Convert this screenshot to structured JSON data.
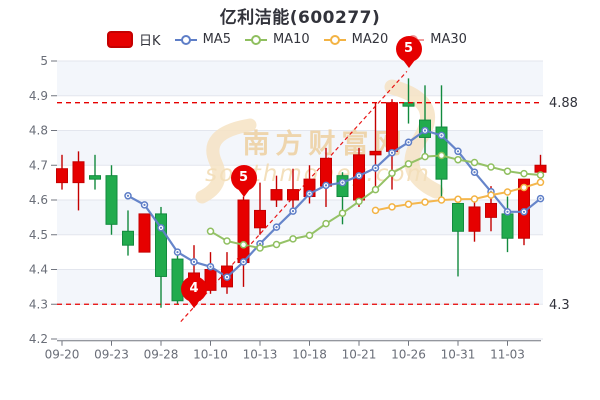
{
  "title": "亿利洁能(600277)",
  "legend": [
    {
      "id": "rik",
      "label": "日K",
      "type": "swatch",
      "color": "#e60000"
    },
    {
      "id": "ma5",
      "label": "MA5",
      "type": "line",
      "color": "#5e7ec7"
    },
    {
      "id": "ma10",
      "label": "MA10",
      "type": "line",
      "color": "#8fbf5f"
    },
    {
      "id": "ma20",
      "label": "MA20",
      "type": "line",
      "color": "#f3b344"
    },
    {
      "id": "ma30",
      "label": "MA30",
      "type": "line",
      "color": "#ef9a9a"
    }
  ],
  "watermark": {
    "cn": "南方财富网",
    "en": "southmoney.com"
  },
  "colors": {
    "up": "#e60000",
    "up_dark": "#c40000",
    "down": "#21ab4d",
    "down_dark": "#128a3e",
    "ma5": "#5e7ec7",
    "ma10": "#8fbf5f",
    "ma20": "#f3b344",
    "ma30": "#ef9a9a",
    "ref": "#e60000",
    "grid": "#e3e6ee",
    "band": "#f3f6fb",
    "axis": "#71757f",
    "label": "#6a6e78",
    "annotation": "#32333c",
    "balloon": "#e60000",
    "title": "#32333b",
    "watermark_text": "#eed0a0",
    "watermark_en": "#f2dab0",
    "watermark_swirl": "#f6e3c4"
  },
  "chart_data": {
    "type": "candlestick",
    "title": "亿利洁能(600277)",
    "ylim": [
      4.2,
      5.0
    ],
    "y_ticks": [
      5,
      4.9,
      4.8,
      4.7,
      4.6,
      4.5,
      4.4,
      4.3,
      4.2
    ],
    "grid": "horizontal-only",
    "band_pairs": [
      [
        5.0,
        4.9
      ],
      [
        4.8,
        4.7
      ],
      [
        4.6,
        4.5
      ],
      [
        4.4,
        4.3
      ]
    ],
    "x_labels": [
      "09-20",
      "09-23",
      "09-28",
      "10-10",
      "10-13",
      "10-18",
      "10-21",
      "10-26",
      "10-31",
      "11-03"
    ],
    "x_label_candles": [
      1,
      4,
      7,
      10,
      13,
      16,
      19,
      22,
      25,
      28
    ],
    "candles": [
      [
        4.65,
        4.73,
        4.63,
        4.69
      ],
      [
        4.65,
        4.74,
        4.57,
        4.71
      ],
      [
        4.67,
        4.73,
        4.63,
        4.66
      ],
      [
        4.67,
        4.7,
        4.5,
        4.53
      ],
      [
        4.51,
        4.57,
        4.44,
        4.47
      ],
      [
        4.45,
        4.56,
        4.45,
        4.56
      ],
      [
        4.56,
        4.58,
        4.29,
        4.38
      ],
      [
        4.43,
        4.44,
        4.3,
        4.31
      ],
      [
        4.33,
        4.47,
        4.29,
        4.39
      ],
      [
        4.34,
        4.45,
        4.33,
        4.4
      ],
      [
        4.35,
        4.45,
        4.33,
        4.41
      ],
      [
        4.42,
        4.61,
        4.35,
        4.6
      ],
      [
        4.52,
        4.65,
        4.5,
        4.57
      ],
      [
        4.6,
        4.67,
        4.58,
        4.63
      ],
      [
        4.6,
        4.69,
        4.57,
        4.63
      ],
      [
        4.61,
        4.7,
        4.59,
        4.66
      ],
      [
        4.64,
        4.75,
        4.58,
        4.72
      ],
      [
        4.67,
        4.68,
        4.53,
        4.61
      ],
      [
        4.6,
        4.75,
        4.58,
        4.73
      ],
      [
        4.73,
        4.88,
        4.63,
        4.74
      ],
      [
        4.74,
        4.89,
        4.63,
        4.88
      ],
      [
        4.88,
        4.95,
        4.82,
        4.87
      ],
      [
        4.83,
        4.93,
        4.72,
        4.78
      ],
      [
        4.81,
        4.93,
        4.61,
        4.66
      ],
      [
        4.59,
        4.6,
        4.38,
        4.51
      ],
      [
        4.51,
        4.6,
        4.48,
        4.58
      ],
      [
        4.55,
        4.64,
        4.51,
        4.59
      ],
      [
        4.56,
        4.61,
        4.45,
        4.49
      ],
      [
        4.49,
        4.66,
        4.47,
        4.66
      ],
      [
        4.68,
        4.73,
        4.65,
        4.7
      ]
    ],
    "series": [
      {
        "name": "MA5",
        "start_candle": 5,
        "values": [
          4.612,
          4.586,
          4.52,
          4.45,
          4.422,
          4.408,
          4.378,
          4.422,
          4.474,
          4.522,
          4.568,
          4.618,
          4.642,
          4.65,
          4.67,
          4.692,
          4.736,
          4.766,
          4.8,
          4.786,
          4.74,
          4.68,
          4.624,
          4.566,
          4.566,
          4.604
        ]
      },
      {
        "name": "MA10",
        "start_candle": 10,
        "values": [
          4.51,
          4.482,
          4.471,
          4.462,
          4.472,
          4.488,
          4.498,
          4.532,
          4.562,
          4.596,
          4.63,
          4.677,
          4.704,
          4.725,
          4.728,
          4.716,
          4.708,
          4.695,
          4.683,
          4.676,
          4.672
        ]
      },
      {
        "name": "MA20",
        "start_candle": 20,
        "values": [
          4.57,
          4.58,
          4.588,
          4.594,
          4.6,
          4.602,
          4.603,
          4.614,
          4.623,
          4.636,
          4.651
        ]
      },
      {
        "name": "MA30",
        "start_candle": 30,
        "values": [
          4.604
        ]
      }
    ],
    "reference_lines": [
      {
        "value": 4.88,
        "label": "4.88"
      },
      {
        "value": 4.3,
        "label": "4.3"
      }
    ],
    "annotations": [
      {
        "label": "4",
        "candle": 9,
        "value": 4.29
      },
      {
        "label": "5",
        "candle": 12,
        "value": 4.61
      },
      {
        "label": "5",
        "candle": 22,
        "value": 4.98
      }
    ],
    "trend_line": {
      "from": {
        "candle": 8.2,
        "value": 4.25
      },
      "to": {
        "candle": 21.9,
        "value": 4.97
      }
    },
    "legend_position": "top"
  }
}
